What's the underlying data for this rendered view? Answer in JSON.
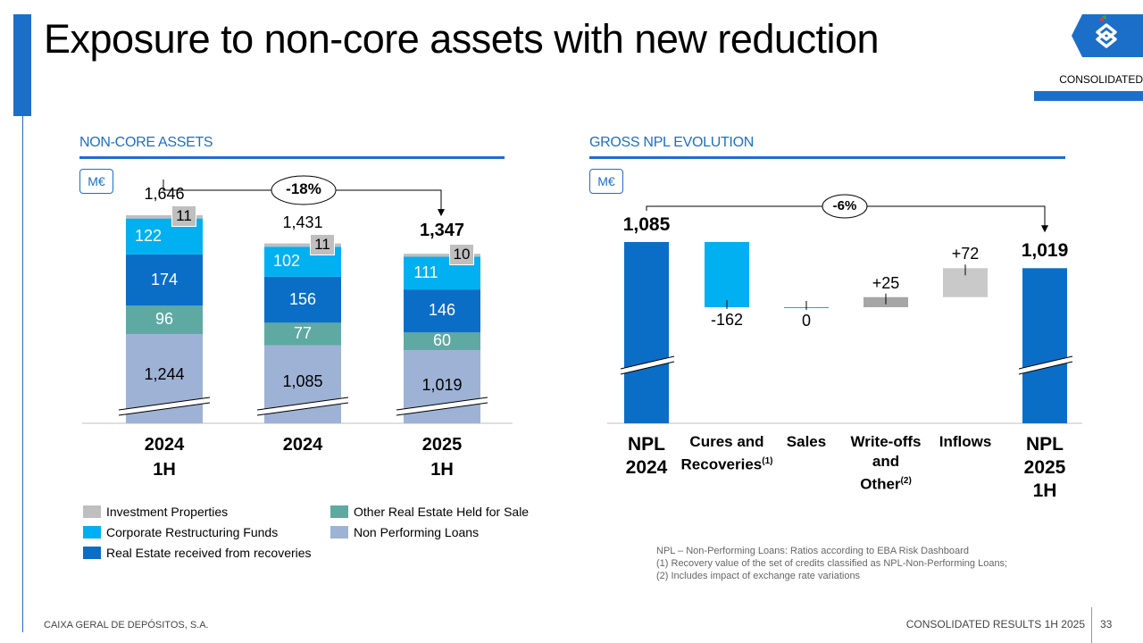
{
  "slide": {
    "title": "Exposure to non-core assets with new reduction",
    "tag": "CONSOLIDATED"
  },
  "left": {
    "section_title": "NON-CORE ASSETS",
    "unit": "M€",
    "change_label": "-18%"
  },
  "right": {
    "section_title": "GROSS NPL EVOLUTION",
    "unit": "M€",
    "change_label": "-6%"
  },
  "chart_data": [
    {
      "type": "bar",
      "stacked": true,
      "title": "NON-CORE ASSETS",
      "unit": "M€",
      "categories": [
        "2024 1H",
        "2024",
        "2025 1H"
      ],
      "category_lines": [
        [
          "2024",
          "1H"
        ],
        [
          "2024"
        ],
        [
          "2025",
          "1H"
        ]
      ],
      "totals": [
        "1,646",
        "1,431",
        "1,347"
      ],
      "series": [
        {
          "name": "Non Performing Loans",
          "color": "#9eb2d6",
          "values": [
            1244,
            1085,
            1019
          ],
          "labels": [
            "1,244",
            "1,085",
            "1,019"
          ]
        },
        {
          "name": "Other Real Estate Held for Sale",
          "color": "#5fa9a3",
          "values": [
            96,
            77,
            60
          ],
          "labels": [
            "96",
            "77",
            "60"
          ]
        },
        {
          "name": "Real Estate received from recoveries",
          "color": "#0b6ec6",
          "values": [
            174,
            156,
            146
          ],
          "labels": [
            "174",
            "156",
            "146"
          ]
        },
        {
          "name": "Corporate Restructuring Funds",
          "color": "#00b0f0",
          "values": [
            122,
            102,
            111
          ],
          "labels": [
            "122",
            "102",
            "111"
          ]
        },
        {
          "name": "Investment Properties",
          "color": "#bfbfbf",
          "values": [
            11,
            11,
            10
          ],
          "labels": [
            "11",
            "11",
            "10"
          ]
        }
      ],
      "change_annotation": "-18%",
      "axis_break": true
    },
    {
      "type": "waterfall",
      "title": "GROSS NPL EVOLUTION",
      "unit": "M€",
      "steps": [
        {
          "name": "NPL 2024",
          "lines": [
            "NPL",
            "2024"
          ],
          "value": 1085,
          "label": "1,085",
          "kind": "total",
          "color": "#0b6ec6"
        },
        {
          "name": "Cures and Recoveries(1)",
          "lines": [
            "Cures and",
            "Recoveries"
          ],
          "sup": "(1)",
          "value": -162,
          "label": "-162",
          "kind": "delta",
          "color": "#00b0f0"
        },
        {
          "name": "Sales",
          "lines": [
            "Sales"
          ],
          "value": 0,
          "label": "0",
          "kind": "delta",
          "color": "#00b0f0"
        },
        {
          "name": "Write-offs and Other(2)",
          "lines": [
            "Write-offs",
            "and",
            "Other"
          ],
          "sup": "(2)",
          "value": 25,
          "label": "+25",
          "kind": "delta",
          "color": "#a6a6a6"
        },
        {
          "name": "Inflows",
          "lines": [
            "Inflows"
          ],
          "value": 72,
          "label": "+72",
          "kind": "delta",
          "color": "#c9c9c9"
        },
        {
          "name": "NPL 2025 1H",
          "lines": [
            "NPL",
            "2025",
            "1H"
          ],
          "value": 1019,
          "label": "1,019",
          "kind": "total",
          "color": "#0b6ec6"
        }
      ],
      "change_annotation": "-6%",
      "axis_break": true
    }
  ],
  "footnotes": [
    "NPL – Non-Performing Loans: Ratios according to EBA Risk Dashboard",
    "(1) Recovery value of the set of credits classified as NPL-Non-Performing Loans;",
    "(2) Includes impact of exchange rate variations"
  ],
  "footer": {
    "company": "CAIXA GERAL DE DEPÓSITOS, S.A.",
    "report": "CONSOLIDATED RESULTS 1H 2025",
    "page": "33"
  },
  "colors": {
    "brand_blue": "#1c6fc9",
    "npl_blue": "#0b6ec6",
    "cyan": "#00b0f0",
    "teal": "#5fa9a3",
    "lavender": "#9eb2d6",
    "gray": "#bfbfbf"
  },
  "icons": {
    "logo": "cgd-logo-icon"
  }
}
